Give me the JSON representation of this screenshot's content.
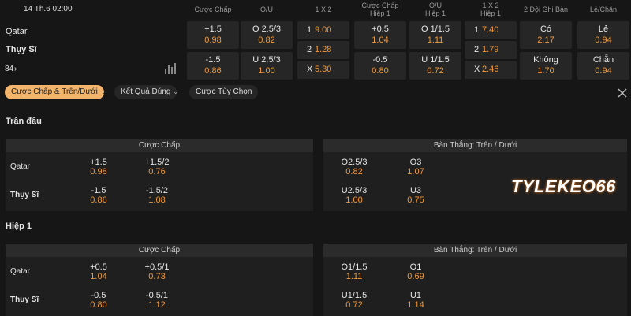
{
  "match": {
    "datetime": "14 Th.6 02:00",
    "home": "Qatar",
    "away": "Thụy Sĩ",
    "more": "84"
  },
  "market_headers": [
    "Cược Chấp",
    "O/U",
    "1 X 2",
    "Cược Chấp\nHiệp 1",
    "O/U\nHiệp 1",
    "1 X 2\nHiệp 1",
    "2 Đội Ghi Bàn",
    "Lẻ/Chẵn"
  ],
  "markets": [
    {
      "cells": [
        {
          "label": "+1.5",
          "odds": "0.98"
        },
        {
          "label": "-1.5",
          "odds": "0.86"
        }
      ]
    },
    {
      "cells": [
        {
          "label": "O 2.5/3",
          "odds": "0.82"
        },
        {
          "label": "U 2.5/3",
          "odds": "1.00"
        }
      ]
    },
    {
      "cells": [
        {
          "label": "1",
          "odds": "9.00"
        },
        {
          "label": "2",
          "odds": "1.28"
        },
        {
          "label": "X",
          "odds": "5.30"
        }
      ]
    },
    {
      "cells": [
        {
          "label": "+0.5",
          "odds": "1.04"
        },
        {
          "label": "-0.5",
          "odds": "0.80"
        }
      ]
    },
    {
      "cells": [
        {
          "label": "O 1/1.5",
          "odds": "1.11"
        },
        {
          "label": "U 1/1.5",
          "odds": "0.72"
        }
      ]
    },
    {
      "cells": [
        {
          "label": "1",
          "odds": "7.40"
        },
        {
          "label": "2",
          "odds": "1.79"
        },
        {
          "label": "X",
          "odds": "2.46"
        }
      ]
    },
    {
      "cells": [
        {
          "label": "Có",
          "odds": "2.17"
        },
        {
          "label": "Không",
          "odds": "1.70"
        }
      ]
    },
    {
      "cells": [
        {
          "label": "Lẻ",
          "odds": "0.94"
        },
        {
          "label": "Chẵn",
          "odds": "0.94"
        }
      ]
    }
  ],
  "tabs": [
    "Cược Chấp & Trên/Dưới",
    "Kết Quả Đúng",
    "Cược Tùy Chọn"
  ],
  "sections": [
    {
      "title": "Trận đấu",
      "panels": [
        {
          "title": "Cược Chấp",
          "rows": [
            {
              "team": "Qatar",
              "bets": [
                {
                  "label": "+1.5",
                  "odds": "0.98"
                },
                {
                  "label": "+1.5/2",
                  "odds": "0.76"
                }
              ]
            },
            {
              "team": "Thụy Sĩ",
              "bets": [
                {
                  "label": "-1.5",
                  "odds": "0.86"
                },
                {
                  "label": "-1.5/2",
                  "odds": "1.08"
                }
              ]
            }
          ]
        },
        {
          "title": "Bàn Thắng: Trên / Dưới",
          "rows": [
            {
              "bets": [
                {
                  "label": "O2.5/3",
                  "odds": "0.82"
                },
                {
                  "label": "O3",
                  "odds": "1.07"
                }
              ]
            },
            {
              "bets": [
                {
                  "label": "U2.5/3",
                  "odds": "1.00"
                },
                {
                  "label": "U3",
                  "odds": "0.75"
                }
              ]
            }
          ]
        }
      ]
    },
    {
      "title": "Hiệp 1",
      "panels": [
        {
          "title": "Cược Chấp",
          "rows": [
            {
              "team": "Qatar",
              "bets": [
                {
                  "label": "+0.5",
                  "odds": "1.04"
                },
                {
                  "label": "+0.5/1",
                  "odds": "0.73"
                }
              ]
            },
            {
              "team": "Thụy Sĩ",
              "bets": [
                {
                  "label": "-0.5",
                  "odds": "0.80"
                },
                {
                  "label": "-0.5/1",
                  "odds": "1.12"
                }
              ]
            }
          ]
        },
        {
          "title": "Bàn Thắng: Trên / Dưới",
          "rows": [
            {
              "bets": [
                {
                  "label": "O1/1.5",
                  "odds": "1.11"
                },
                {
                  "label": "O1",
                  "odds": "0.69"
                }
              ]
            },
            {
              "bets": [
                {
                  "label": "U1/1.5",
                  "odds": "0.72"
                },
                {
                  "label": "U1",
                  "odds": "1.14"
                }
              ]
            }
          ]
        }
      ]
    }
  ],
  "watermark": "TYLEKEO66"
}
